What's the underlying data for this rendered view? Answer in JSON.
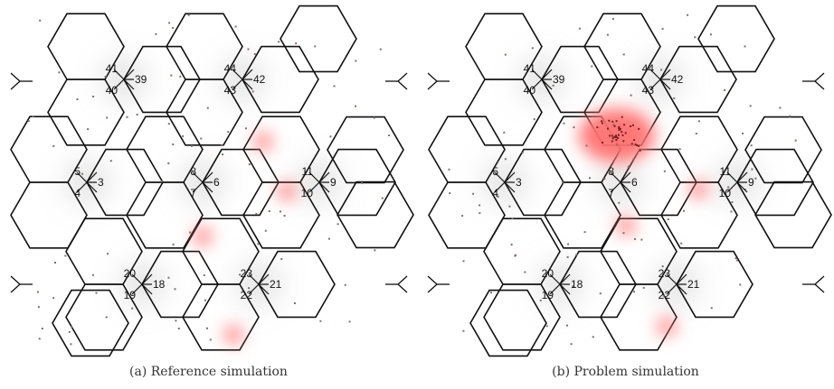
{
  "panels": [
    {
      "caption": "(a)  Reference simulation",
      "sites": [
        {
          "labels": [
            "41",
            "39",
            "40"
          ]
        },
        {
          "labels": [
            "44",
            "42",
            "43"
          ]
        },
        {
          "labels": [
            "5",
            "3",
            "4"
          ]
        },
        {
          "labels": [
            "8",
            "6",
            "7"
          ]
        },
        {
          "labels": [
            "11",
            "9",
            "10"
          ]
        },
        {
          "labels": [
            "20",
            "18",
            "19"
          ]
        },
        {
          "labels": [
            "23",
            "21",
            "22"
          ]
        }
      ],
      "hotspots": [
        {
          "size": "small"
        },
        {
          "size": "small"
        },
        {
          "size": "small"
        },
        {
          "size": "small"
        }
      ]
    },
    {
      "caption": "(b)  Problem simulation",
      "sites": [
        {
          "labels": [
            "41",
            "39",
            "40"
          ]
        },
        {
          "labels": [
            "44",
            "42",
            "43"
          ]
        },
        {
          "labels": [
            "5",
            "3",
            "4"
          ]
        },
        {
          "labels": [
            "8",
            "6",
            "7"
          ]
        },
        {
          "labels": [
            "11",
            "9",
            "10"
          ]
        },
        {
          "labels": [
            "20",
            "18",
            "19"
          ]
        },
        {
          "labels": [
            "23",
            "21",
            "22"
          ]
        }
      ],
      "hotspots": [
        {
          "size": "large"
        },
        {
          "size": "small"
        },
        {
          "size": "small"
        },
        {
          "size": "small"
        }
      ]
    }
  ],
  "colors": {
    "cell_border": "#111111",
    "hotspot": "#ff7070",
    "shading": "#bbbbbb",
    "dots": "#8a6a6a"
  }
}
